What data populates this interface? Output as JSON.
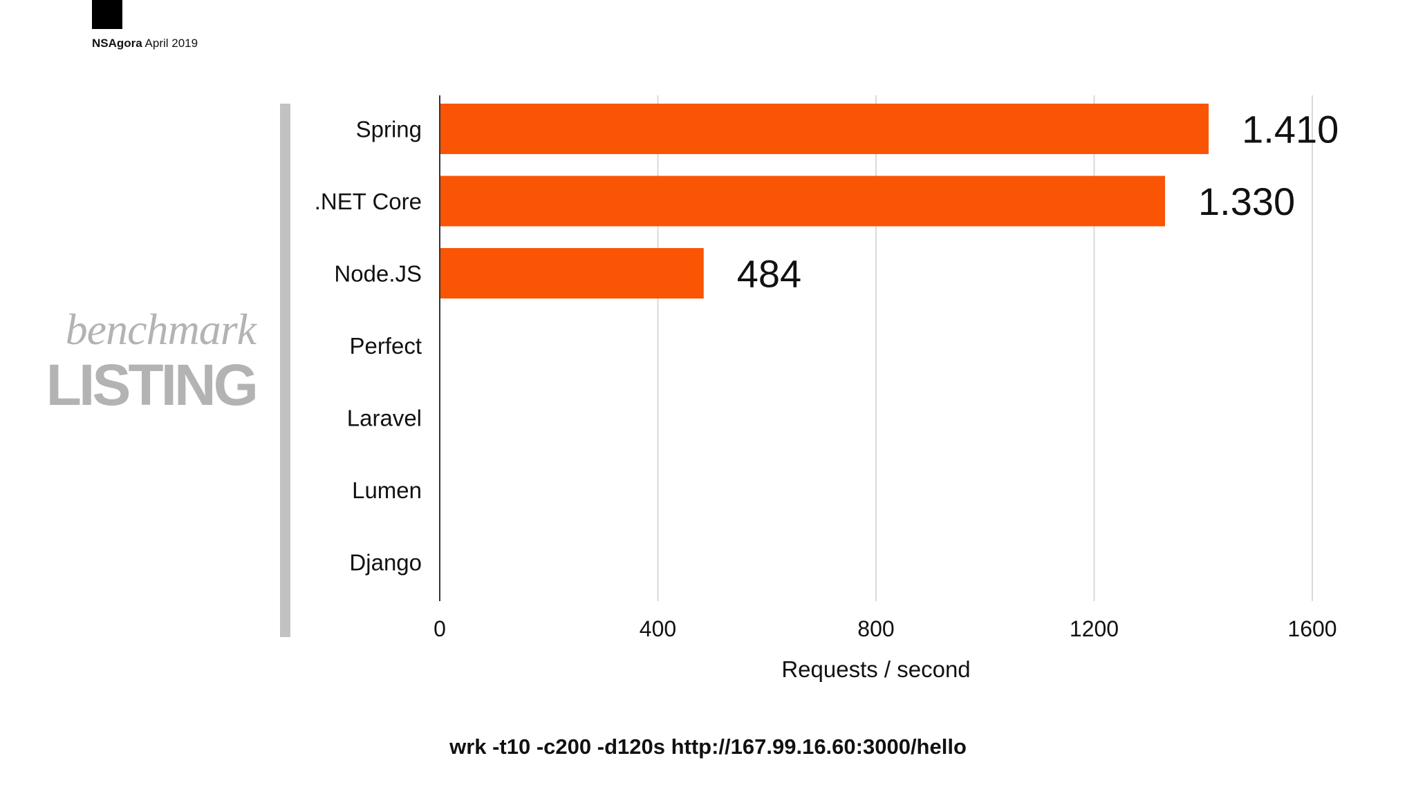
{
  "header": {
    "brand": "NSAgora",
    "date": "April 2019"
  },
  "side_title": {
    "script": "benchmark",
    "caps": "LISTING"
  },
  "command": "wrk -t10 -c200 -d120s http://167.99.16.60:3000/hello",
  "colors": {
    "bar": "#fa5405",
    "gridline": "#d9d9d9",
    "axis": "#333333",
    "side_title": "#b3b3b3"
  },
  "chart_data": {
    "type": "bar",
    "orientation": "horizontal",
    "categories": [
      "Spring",
      ".NET Core",
      "Node.JS",
      "Perfect",
      "Laravel",
      "Lumen",
      "Django"
    ],
    "values": [
      1410,
      1330,
      484,
      null,
      null,
      null,
      null
    ],
    "value_labels": [
      "1.410",
      "1.330",
      "484",
      "",
      "",
      "",
      ""
    ],
    "xlabel": "Requests / second",
    "ylabel": "",
    "xlim": [
      0,
      1600
    ],
    "xticks": [
      0,
      400,
      800,
      1200,
      1600
    ],
    "xtick_labels": [
      "0",
      "400",
      "800",
      "1200",
      "1600"
    ],
    "grid": true
  }
}
